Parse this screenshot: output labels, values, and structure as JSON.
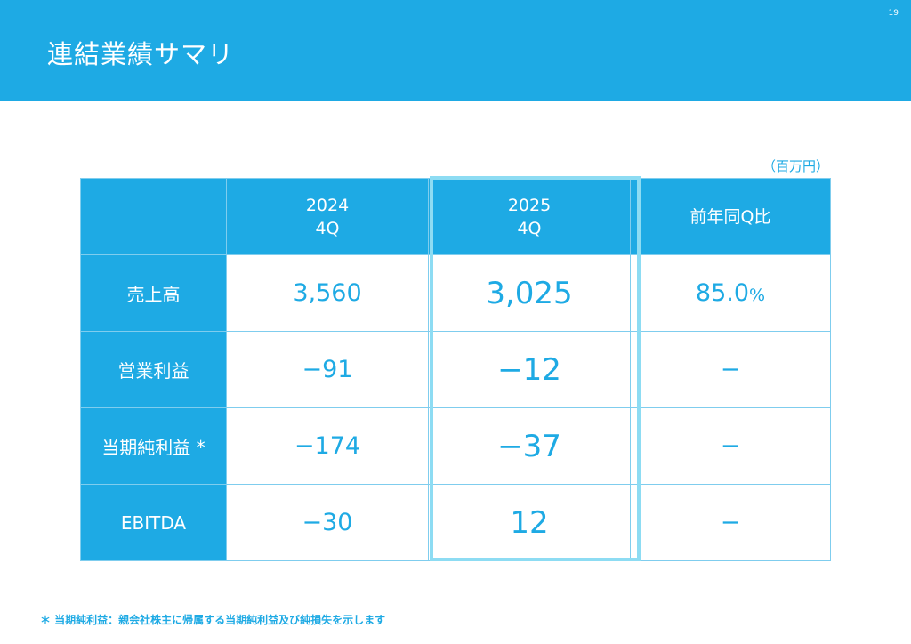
{
  "header": {
    "title": "連結業績サマリ",
    "page_number": "19"
  },
  "unit_label": "（百万円）",
  "table": {
    "columns": [
      {
        "line1": "",
        "line2": ""
      },
      {
        "line1": "2024",
        "line2": "4Q"
      },
      {
        "line1": "2025",
        "line2": "4Q"
      },
      {
        "line1": "前年同Q比",
        "line2": ""
      }
    ],
    "rows": [
      {
        "label": "売上高",
        "v2024": "3,560",
        "v2025": "3,025",
        "yoy_value": "85.0",
        "yoy_unit": "%"
      },
      {
        "label": "営業利益",
        "v2024": "−91",
        "v2025": "−12",
        "yoy_value": "−",
        "yoy_unit": ""
      },
      {
        "label": "当期純利益 *",
        "v2024": "−174",
        "v2025": "−37",
        "yoy_value": "−",
        "yoy_unit": ""
      },
      {
        "label": "EBITDA",
        "v2024": "−30",
        "v2025": "12",
        "yoy_value": "−",
        "yoy_unit": ""
      }
    ]
  },
  "footnote": "＊ 当期純利益：親会社株主に帰属する当期純利益及び純損失を示します",
  "colors": {
    "accent": "#1eaae4",
    "highlight_frame": "#8ddcf3",
    "grid": "#7fcdee"
  }
}
